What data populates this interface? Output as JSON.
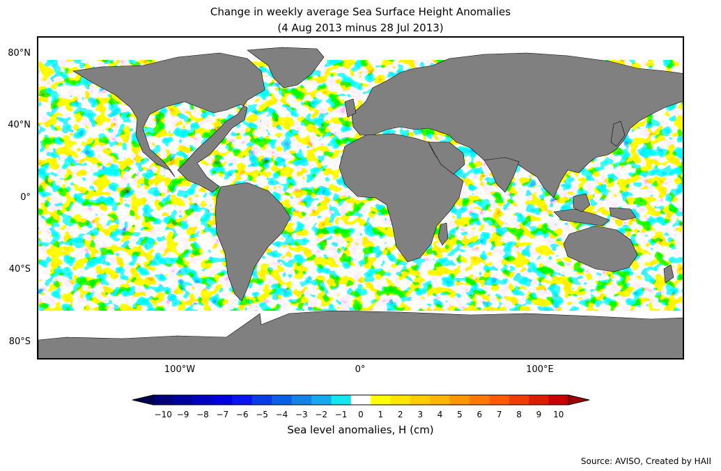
{
  "title": {
    "line1": "Change in weekly average Sea Surface Height Anomalies",
    "line2": "(4 Aug 2013 minus 28 Jul 2013)"
  },
  "map": {
    "projection": "equirectangular",
    "lon_range": [
      -180,
      180
    ],
    "lat_range": [
      -90,
      90
    ],
    "land_color": "#808080",
    "no_data_color": "#ffffff",
    "lat_ticks": [
      {
        "lat": 80,
        "label": "80°N"
      },
      {
        "lat": 40,
        "label": "40°N"
      },
      {
        "lat": 0,
        "label": "0°"
      },
      {
        "lat": -40,
        "label": "40°S"
      },
      {
        "lat": -80,
        "label": "80°S"
      }
    ],
    "lon_ticks": [
      {
        "lon": -100,
        "label": "100°W"
      },
      {
        "lon": 0,
        "label": "0°"
      },
      {
        "lon": 100,
        "label": "100°E"
      }
    ]
  },
  "colorbar": {
    "label": "Sea level anomalies, H (cm)",
    "extend": "both",
    "ticks": [
      "−10",
      "−9",
      "−8",
      "−7",
      "−6",
      "−5",
      "−4",
      "−3",
      "−2",
      "−1",
      "0",
      "1",
      "2",
      "3",
      "4",
      "5",
      "6",
      "7",
      "8",
      "9",
      "10"
    ],
    "colors": [
      "#00007a",
      "#00009e",
      "#0000c0",
      "#0000dc",
      "#0a14f0",
      "#0a3ce6",
      "#0a5fe6",
      "#1482e6",
      "#14a8ec",
      "#14e6ee",
      "#ffffff",
      "#ffff00",
      "#ffe600",
      "#ffcc00",
      "#ffb400",
      "#ff9600",
      "#ff7800",
      "#ff5a00",
      "#f03c00",
      "#dc1e00",
      "#c80000"
    ],
    "under_color": "#000050",
    "over_color": "#a00000"
  },
  "source": "Source: AVISO, Created by HAII"
}
